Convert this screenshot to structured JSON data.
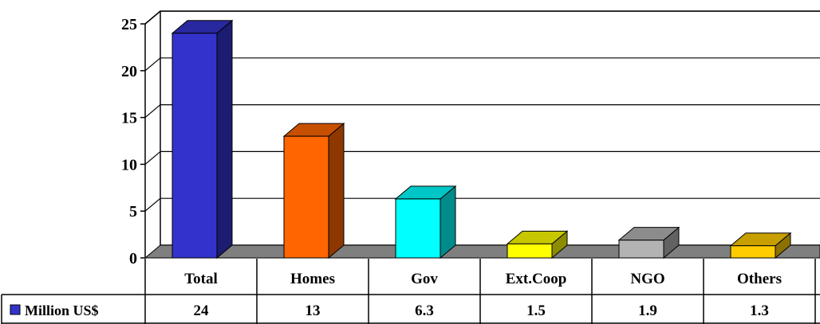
{
  "chart_data": {
    "type": "bar",
    "categories": [
      "Total",
      "Homes",
      "Gov",
      "Ext.Coop",
      "NGO",
      "Others"
    ],
    "series": [
      {
        "name": "Million US$",
        "values": [
          24,
          13,
          6.3,
          1.5,
          1.9,
          1.3
        ],
        "value_labels": [
          "24",
          "13",
          "6.3",
          "1.5",
          "1.9",
          "1.3"
        ],
        "legend_color": "#3333cc"
      }
    ],
    "bar_colors": [
      "#3333cc",
      "#ff6600",
      "#00ffff",
      "#ffff00",
      "#b3b3b3",
      "#ffcc00"
    ],
    "y_ticks": [
      "0",
      "5",
      "10",
      "15",
      "20",
      "25"
    ],
    "ylim": [
      0,
      25
    ],
    "grid": true,
    "data_table": true,
    "three_d": true
  }
}
